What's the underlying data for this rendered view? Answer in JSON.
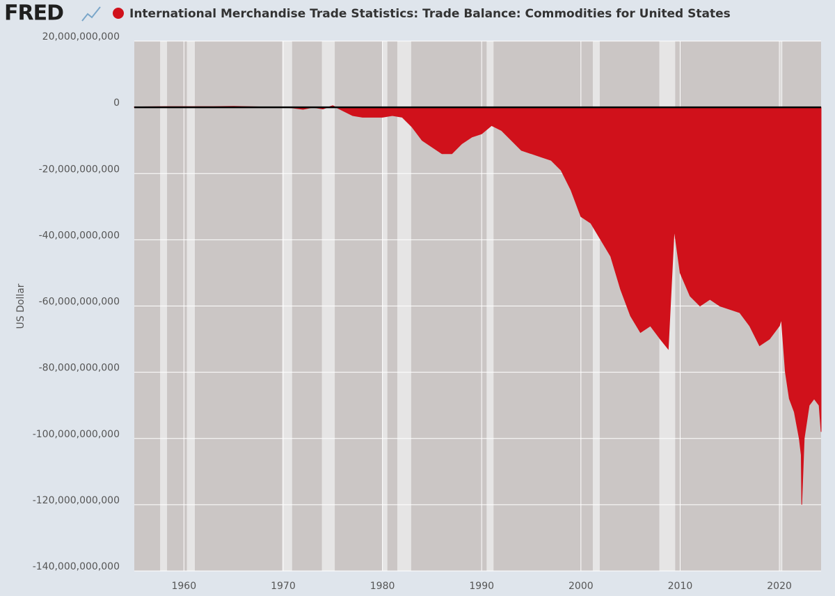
{
  "logo": "FRED",
  "chart_data": {
    "type": "area",
    "ylabel": "US Dollar",
    "x": [
      1955,
      1958,
      1960,
      1963,
      1965,
      1968,
      1970,
      1971,
      1972,
      1973,
      1974,
      1975,
      1976,
      1977,
      1978,
      1979,
      1980,
      1981,
      1982,
      1983,
      1984,
      1985,
      1986,
      1987,
      1988,
      1989,
      1990,
      1991,
      1992,
      1993,
      1994,
      1995,
      1996,
      1997,
      1998,
      1999,
      2000,
      2001,
      2002,
      2003,
      2004,
      2005,
      2006,
      2007,
      2008,
      2008.8,
      2009.4,
      2010,
      2011,
      2012,
      2013,
      2014,
      2015,
      2016,
      2017,
      2018,
      2019,
      2020,
      2020.2,
      2020.6,
      2021,
      2021.5,
      2022,
      2022.2,
      2022.25,
      2022.5,
      2023,
      2023.5,
      2024,
      2024.2
    ],
    "series": [
      {
        "name": "International Merchandise Trade Statistics: Trade Balance: Commodities for United States",
        "color": "#d0111b",
        "values": [
          100000000.0,
          200000000.0,
          200000000.0,
          200000000.0,
          300000000.0,
          100000000.0,
          100000000.0,
          -200000000.0,
          -600000000.0,
          0,
          -500000000.0,
          500000000.0,
          -1000000000.0,
          -2500000000.0,
          -3000000000.0,
          -3000000000.0,
          -3000000000.0,
          -2500000000.0,
          -3000000000.0,
          -6000000000.0,
          -10000000000.0,
          -12000000000.0,
          -14000000000.0,
          -14000000000.0,
          -11000000000.0,
          -9000000000.0,
          -8000000000.0,
          -5500000000.0,
          -7000000000.0,
          -10000000000.0,
          -13000000000.0,
          -14000000000.0,
          -15000000000.0,
          -16000000000.0,
          -19000000000.0,
          -25000000000.0,
          -33000000000.0,
          -35000000000.0,
          -40000000000.0,
          -45000000000.0,
          -55000000000.0,
          -63000000000.0,
          -68000000000.0,
          -66000000000.0,
          -70000000000.0,
          -73000000000.0,
          -37000000000.0,
          -50000000000.0,
          -57000000000.0,
          -60000000000.0,
          -58000000000.0,
          -60000000000.0,
          -61000000000.0,
          -62000000000.0,
          -66000000000.0,
          -72000000000.0,
          -70000000000.0,
          -66000000000.0,
          -64000000000.0,
          -80000000000.0,
          -88000000000.0,
          -92000000000.0,
          -100000000000.0,
          -105000000000.0,
          -120000000000.0,
          -100000000000.0,
          -90000000000.0,
          -88000000000.0,
          -90000000000.0,
          -98000000000.0
        ]
      }
    ],
    "recessions": [
      [
        1957.6,
        1958.3
      ],
      [
        1960.3,
        1961.1
      ],
      [
        1969.9,
        1970.9
      ],
      [
        1973.9,
        1975.2
      ],
      [
        1980.0,
        1980.5
      ],
      [
        1981.5,
        1982.9
      ],
      [
        1990.5,
        1991.2
      ],
      [
        2001.2,
        2001.9
      ],
      [
        2007.9,
        2009.5
      ],
      [
        2020.1,
        2020.3
      ]
    ],
    "recession_color": "#e6e5e5",
    "background_color": "#cbc6c5",
    "grid": true,
    "xlim": [
      1955,
      2024.2
    ],
    "xticks": [
      1960,
      1970,
      1980,
      1990,
      2000,
      2010,
      2020
    ],
    "ylim": [
      -140000000000,
      20000000000
    ],
    "yticks": [
      {
        "value": 20000000000,
        "label": "20,000,000,000"
      },
      0,
      {
        "value": -20000000000,
        "label": "-20,000,000,000"
      },
      {
        "value": -40000000000,
        "label": "-40,000,000,000"
      },
      {
        "value": -60000000000,
        "label": "-60,000,000,000"
      },
      {
        "value": -80000000000,
        "label": "-80,000,000,000"
      },
      {
        "value": -100000000000,
        "label": "-100,000,000,000"
      },
      {
        "value": -120000000000,
        "label": "-120,000,000,000"
      },
      {
        "value": -140000000000,
        "label": "-140,000,000,000"
      }
    ]
  }
}
